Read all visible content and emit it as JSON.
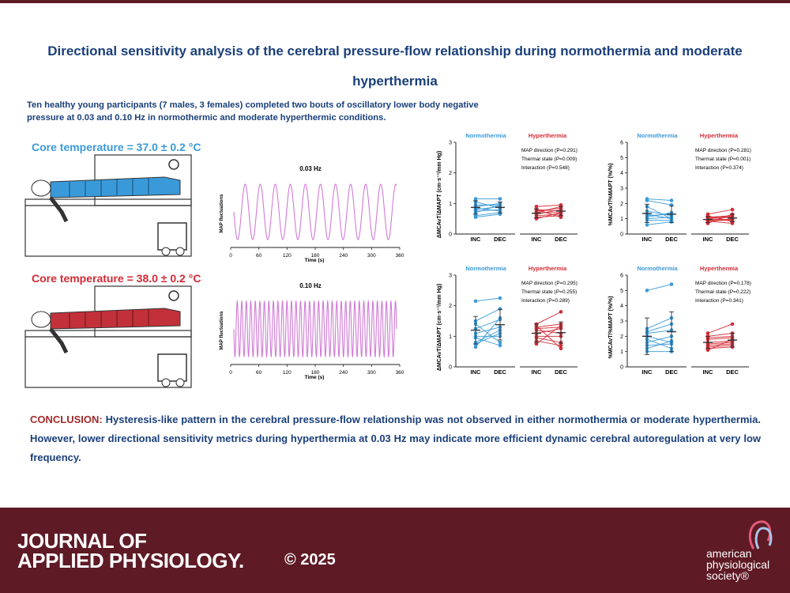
{
  "title": "Directional sensitivity analysis of the cerebral pressure-flow relationship during normothermia and moderate hyperthermia",
  "intro": "Ten healthy young participants (7 males, 3 females) completed two bouts of oscillatory lower body negative pressure at 0.03 and 0.10 Hz in normothermic and moderate hyperthermic conditions.",
  "core_temp_1": "Core temperature = 37.0 ± 0.2 °C",
  "core_temp_2": "Core temperature = 38.0 ± 0.2 °C",
  "colors": {
    "normo": "#3a9ad9",
    "hyper": "#d42a34",
    "sine": "#d17ad6",
    "brand": "#5e1a25",
    "title": "#1a3f7a"
  },
  "chart_data": [
    {
      "type": "line",
      "title": "0.03 Hz",
      "xlabel": "Time (s)",
      "ylabel": "MAP fluctuations",
      "frequency_hz": 0.03,
      "xlim": [
        0,
        360
      ],
      "xticks": [
        0,
        60,
        120,
        180,
        240,
        300,
        360
      ]
    },
    {
      "type": "line",
      "title": "0.10 Hz",
      "xlabel": "Time (s)",
      "ylabel": "MAP fluctuations",
      "frequency_hz": 0.1,
      "xlim": [
        0,
        360
      ],
      "xticks": [
        0,
        60,
        120,
        180,
        240,
        300,
        360
      ]
    },
    {
      "type": "scatter",
      "ylabel": "ΔMCAvT/ΔMAPT (cm·s⁻¹/mm Hg)",
      "ylim": [
        0,
        3
      ],
      "yticks": [
        0,
        1,
        2,
        3
      ],
      "group_names": [
        "Normothermia",
        "Hyperthermia"
      ],
      "categories": [
        "INC",
        "DEC"
      ],
      "stats": [
        "MAP direction (P=0.291)",
        "Thermal state (P=0.009)",
        "Interaction (P=0.548)"
      ],
      "normo": {
        "inc": [
          1.15,
          1.05,
          0.95,
          0.9,
          0.85,
          0.8,
          0.75,
          0.7,
          0.6,
          0.55
        ],
        "dec": [
          1.15,
          0.85,
          0.95,
          1.0,
          0.75,
          0.9,
          0.8,
          0.95,
          0.7,
          0.65
        ],
        "mean": [
          0.87,
          0.87
        ],
        "sd": [
          0.22,
          0.18
        ]
      },
      "hyper": {
        "inc": [
          0.9,
          0.8,
          0.75,
          0.7,
          0.65,
          0.6,
          0.55,
          0.5,
          0.8,
          0.7
        ],
        "dec": [
          0.95,
          0.75,
          0.85,
          0.7,
          0.8,
          0.65,
          0.6,
          0.7,
          0.55,
          0.9
        ],
        "mean": [
          0.68,
          0.75
        ],
        "sd": [
          0.15,
          0.15
        ]
      }
    },
    {
      "type": "scatter",
      "ylabel": "%MCAvT/%MAPT (%/%)",
      "ylim": [
        0,
        6
      ],
      "yticks": [
        0,
        1,
        2,
        3,
        4,
        5,
        6
      ],
      "group_names": [
        "Normothermia",
        "Hyperthermia"
      ],
      "categories": [
        "INC",
        "DEC"
      ],
      "stats": [
        "MAP direction (P=0.281)",
        "Thermal state (P=0.001)",
        "Interaction (P=0.374)"
      ],
      "normo": {
        "inc": [
          2.3,
          2.2,
          1.5,
          1.3,
          1.1,
          1.0,
          0.9,
          1.8,
          1.2,
          0.6
        ],
        "dec": [
          2.2,
          1.9,
          1.2,
          1.0,
          1.4,
          1.1,
          0.9,
          1.0,
          1.3,
          0.8
        ],
        "mean": [
          1.35,
          1.3
        ],
        "sd": [
          0.6,
          0.55
        ]
      },
      "hyper": {
        "inc": [
          1.3,
          1.1,
          1.0,
          0.9,
          0.8,
          1.2,
          0.7,
          0.95,
          0.85,
          1.05
        ],
        "dec": [
          1.6,
          1.2,
          1.1,
          0.9,
          1.0,
          0.8,
          1.3,
          0.95,
          0.7,
          1.15
        ],
        "mean": [
          0.95,
          1.05
        ],
        "sd": [
          0.2,
          0.25
        ]
      }
    },
    {
      "type": "scatter",
      "ylabel": "ΔMCAvT/ΔMAPT (cm·s⁻¹/mm Hg)",
      "ylim": [
        0,
        3
      ],
      "yticks": [
        0,
        1,
        2,
        3
      ],
      "group_names": [
        "Normothermia",
        "Hyperthermia"
      ],
      "categories": [
        "INC",
        "DEC"
      ],
      "stats": [
        "MAP direction (P=0.295)",
        "Thermal state (P=0.255)",
        "Interaction (P=0.289)"
      ],
      "normo": {
        "inc": [
          2.15,
          1.5,
          1.25,
          1.1,
          1.0,
          0.95,
          0.8,
          0.65,
          1.4,
          0.75
        ],
        "dec": [
          2.25,
          1.9,
          1.55,
          1.3,
          1.0,
          0.7,
          1.2,
          1.6,
          0.8,
          1.1
        ],
        "mean": [
          1.2,
          1.38
        ],
        "sd": [
          0.45,
          0.5
        ]
      },
      "hyper": {
        "inc": [
          1.4,
          1.3,
          1.25,
          1.1,
          1.0,
          0.95,
          0.85,
          0.75,
          1.2,
          1.35
        ],
        "dec": [
          1.8,
          1.4,
          1.3,
          1.25,
          1.0,
          0.8,
          0.7,
          1.35,
          1.1,
          0.6
        ],
        "mean": [
          1.1,
          1.12
        ],
        "sd": [
          0.3,
          0.35
        ]
      }
    },
    {
      "type": "scatter",
      "ylabel": "%MCAvT/%MAPT (%/%)",
      "ylim": [
        0,
        6
      ],
      "yticks": [
        0,
        1,
        2,
        3,
        4,
        5,
        6
      ],
      "group_names": [
        "Normothermia",
        "Hyperthermia"
      ],
      "categories": [
        "INC",
        "DEC"
      ],
      "stats": [
        "MAP direction (P=0.178)",
        "Thermal state (P=0.222)",
        "Interaction (P=0.341)"
      ],
      "normo": {
        "inc": [
          5.0,
          2.5,
          2.2,
          2.0,
          1.8,
          1.6,
          1.4,
          1.2,
          1.0,
          2.3
        ],
        "dec": [
          5.4,
          3.2,
          2.4,
          1.6,
          1.2,
          2.0,
          1.5,
          1.7,
          1.0,
          2.8
        ],
        "mean": [
          2.0,
          2.3
        ],
        "sd": [
          1.2,
          1.3
        ]
      },
      "hyper": {
        "inc": [
          2.2,
          2.0,
          1.8,
          1.6,
          1.5,
          1.4,
          1.3,
          1.2,
          1.1,
          1.9
        ],
        "dec": [
          2.8,
          2.2,
          1.9,
          1.7,
          1.6,
          1.5,
          1.4,
          1.3,
          1.8,
          2.0
        ],
        "mean": [
          1.6,
          1.75
        ],
        "sd": [
          0.4,
          0.45
        ]
      }
    }
  ],
  "conclusion_label": "CONCLUSION:",
  "conclusion_text": " Hysteresis-like pattern in the cerebral pressure-flow relationship was not observed in either normothermia or moderate hyperthermia. However, lower directional sensitivity metrics during hyperthermia at 0.03 Hz may indicate more efficient dynamic cerebral autoregulation at very low frequency.",
  "journal_line1": "JOURNAL OF",
  "journal_line2": "APPLIED PHYSIOLOGY.",
  "copyright": "© 2025",
  "society_line1": "american",
  "society_line2": "physiological",
  "society_line3": "society®"
}
